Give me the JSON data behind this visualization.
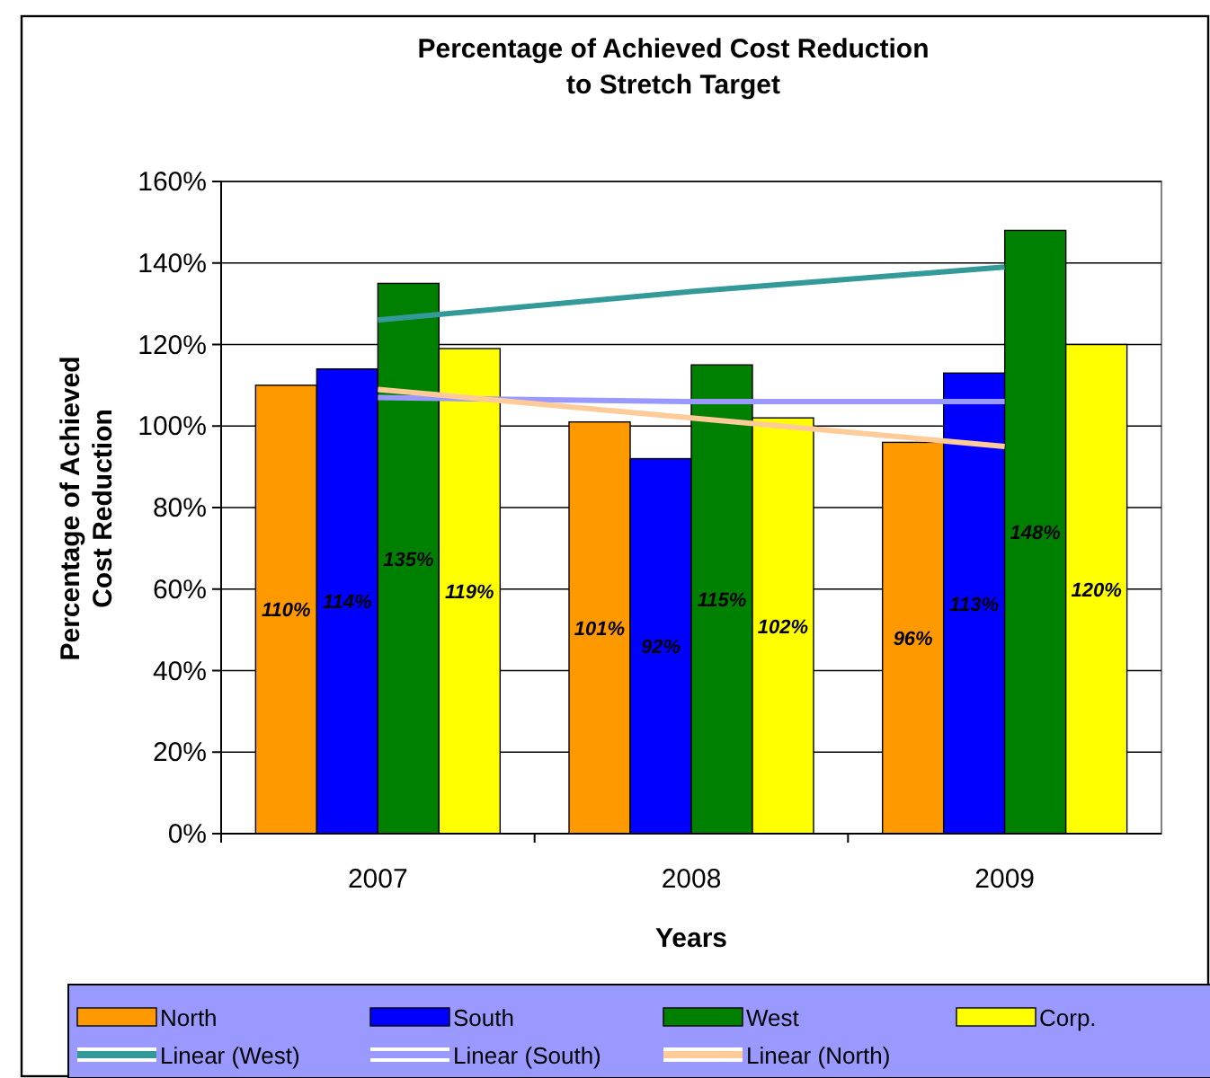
{
  "chart_data": {
    "type": "bar",
    "title": "Percentage of Achieved Cost Reduction\nto Stretch Target",
    "xlabel": "Years",
    "ylabel": "Percentage of Achieved\nCost Reduction",
    "categories": [
      "2007",
      "2008",
      "2009"
    ],
    "series": [
      {
        "name": "North",
        "color": "#ff9900",
        "values": [
          110,
          101,
          96
        ],
        "value_labels": [
          "110%",
          "101%",
          "96%"
        ]
      },
      {
        "name": "South",
        "color": "#0000ff",
        "values": [
          114,
          92,
          113
        ],
        "value_labels": [
          "114%",
          "92%",
          "113%"
        ]
      },
      {
        "name": "West",
        "color": "#008000",
        "values": [
          135,
          115,
          148
        ],
        "value_labels": [
          "135%",
          "115%",
          "148%"
        ]
      },
      {
        "name": "Corp.",
        "color": "#ffff00",
        "values": [
          119,
          102,
          120
        ],
        "value_labels": [
          "119%",
          "102%",
          "120%"
        ]
      },
      {
        "name": "Linear (West)",
        "type": "line",
        "color": "#339999",
        "values": [
          126,
          133,
          139
        ]
      },
      {
        "name": "Linear (South)",
        "type": "line",
        "color": "#9999ff",
        "values": [
          107,
          106,
          106
        ]
      },
      {
        "name": "Linear (North)",
        "type": "line",
        "color": "#ffcc99",
        "values": [
          109,
          102,
          95
        ]
      }
    ],
    "ylim": [
      0,
      160
    ],
    "yticks": [
      {
        "value": 0,
        "label": "0%"
      },
      {
        "value": 20,
        "label": "20%"
      },
      {
        "value": 40,
        "label": "40%"
      },
      {
        "value": 60,
        "label": "60%"
      },
      {
        "value": 80,
        "label": "80%"
      },
      {
        "value": 100,
        "label": "100%"
      },
      {
        "value": 120,
        "label": "120%"
      },
      {
        "value": 140,
        "label": "140%"
      },
      {
        "value": 160,
        "label": "160%"
      }
    ],
    "grid": "y",
    "legend": "bottom",
    "marker": "none",
    "line_style": "solid"
  }
}
